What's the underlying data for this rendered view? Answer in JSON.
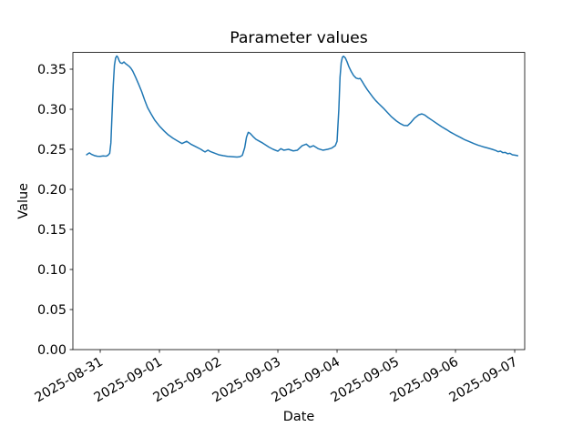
{
  "figure": {
    "title": "Parameter values",
    "xlabel": "Date",
    "ylabel": "Value"
  },
  "chart_data": {
    "type": "line",
    "title": "Parameter values",
    "xlabel": "Date",
    "ylabel": "Value",
    "legend": null,
    "grid": false,
    "line_color": "#1f77b4",
    "line_width": 1.5,
    "x_unit": "days since 2025-08-31 00:00",
    "xlim_days": [
      -0.462,
      7.169
    ],
    "ylim": [
      0.0,
      0.3709
    ],
    "x_ticks": [
      {
        "day": 0,
        "label": "2025-08-31"
      },
      {
        "day": 1,
        "label": "2025-09-01"
      },
      {
        "day": 2,
        "label": "2025-09-02"
      },
      {
        "day": 3,
        "label": "2025-09-03"
      },
      {
        "day": 4,
        "label": "2025-09-04"
      },
      {
        "day": 5,
        "label": "2025-09-05"
      },
      {
        "day": 6,
        "label": "2025-09-06"
      },
      {
        "day": 7,
        "label": "2025-09-07"
      }
    ],
    "y_ticks": [
      0.0,
      0.05,
      0.1,
      0.15,
      0.2,
      0.25,
      0.3,
      0.35
    ],
    "y_tick_decimals": 2,
    "series": [
      {
        "name": "parameter",
        "color": "#1f77b4",
        "points": [
          [
            -0.23,
            0.2432
          ],
          [
            -0.2,
            0.2448
          ],
          [
            -0.18,
            0.2455
          ],
          [
            -0.15,
            0.2438
          ],
          [
            -0.1,
            0.2422
          ],
          [
            -0.05,
            0.2413
          ],
          [
            0.0,
            0.2412
          ],
          [
            0.05,
            0.2418
          ],
          [
            0.1,
            0.2414
          ],
          [
            0.13,
            0.2425
          ],
          [
            0.16,
            0.245
          ],
          [
            0.18,
            0.258
          ],
          [
            0.2,
            0.295
          ],
          [
            0.22,
            0.33
          ],
          [
            0.24,
            0.355
          ],
          [
            0.26,
            0.364
          ],
          [
            0.28,
            0.3665
          ],
          [
            0.3,
            0.3645
          ],
          [
            0.32,
            0.3605
          ],
          [
            0.34,
            0.358
          ],
          [
            0.37,
            0.3572
          ],
          [
            0.4,
            0.359
          ],
          [
            0.43,
            0.3568
          ],
          [
            0.46,
            0.3552
          ],
          [
            0.49,
            0.3535
          ],
          [
            0.52,
            0.351
          ],
          [
            0.55,
            0.3475
          ],
          [
            0.6,
            0.3395
          ],
          [
            0.65,
            0.331
          ],
          [
            0.7,
            0.322
          ],
          [
            0.75,
            0.3115
          ],
          [
            0.8,
            0.302
          ],
          [
            0.86,
            0.294
          ],
          [
            0.92,
            0.2865
          ],
          [
            1.0,
            0.279
          ],
          [
            1.08,
            0.2728
          ],
          [
            1.15,
            0.268
          ],
          [
            1.23,
            0.2638
          ],
          [
            1.31,
            0.2602
          ],
          [
            1.38,
            0.2572
          ],
          [
            1.46,
            0.26
          ],
          [
            1.54,
            0.256
          ],
          [
            1.62,
            0.253
          ],
          [
            1.7,
            0.25
          ],
          [
            1.74,
            0.248
          ],
          [
            1.77,
            0.2467
          ],
          [
            1.82,
            0.249
          ],
          [
            1.86,
            0.2472
          ],
          [
            1.92,
            0.2455
          ],
          [
            2.0,
            0.2432
          ],
          [
            2.08,
            0.242
          ],
          [
            2.15,
            0.2412
          ],
          [
            2.23,
            0.2408
          ],
          [
            2.31,
            0.2403
          ],
          [
            2.36,
            0.2408
          ],
          [
            2.4,
            0.2425
          ],
          [
            2.44,
            0.252
          ],
          [
            2.47,
            0.265
          ],
          [
            2.5,
            0.2712
          ],
          [
            2.53,
            0.27
          ],
          [
            2.58,
            0.266
          ],
          [
            2.63,
            0.2625
          ],
          [
            2.69,
            0.26
          ],
          [
            2.74,
            0.258
          ],
          [
            2.77,
            0.2565
          ],
          [
            2.85,
            0.2527
          ],
          [
            2.92,
            0.25
          ],
          [
            3.0,
            0.2477
          ],
          [
            3.05,
            0.2508
          ],
          [
            3.1,
            0.2489
          ],
          [
            3.18,
            0.25
          ],
          [
            3.26,
            0.248
          ],
          [
            3.33,
            0.2489
          ],
          [
            3.41,
            0.2545
          ],
          [
            3.48,
            0.2565
          ],
          [
            3.54,
            0.2527
          ],
          [
            3.6,
            0.2545
          ],
          [
            3.68,
            0.2508
          ],
          [
            3.76,
            0.2489
          ],
          [
            3.84,
            0.25
          ],
          [
            3.91,
            0.2515
          ],
          [
            3.97,
            0.2545
          ],
          [
            4.0,
            0.26
          ],
          [
            4.03,
            0.3
          ],
          [
            4.05,
            0.34
          ],
          [
            4.07,
            0.358
          ],
          [
            4.09,
            0.365
          ],
          [
            4.11,
            0.3662
          ],
          [
            4.14,
            0.364
          ],
          [
            4.17,
            0.359
          ],
          [
            4.2,
            0.353
          ],
          [
            4.24,
            0.347
          ],
          [
            4.28,
            0.342
          ],
          [
            4.32,
            0.339
          ],
          [
            4.36,
            0.338
          ],
          [
            4.39,
            0.3385
          ],
          [
            4.43,
            0.334
          ],
          [
            4.47,
            0.329
          ],
          [
            4.51,
            0.3245
          ],
          [
            4.55,
            0.3205
          ],
          [
            4.6,
            0.3155
          ],
          [
            4.65,
            0.311
          ],
          [
            4.71,
            0.3065
          ],
          [
            4.78,
            0.3015
          ],
          [
            4.85,
            0.296
          ],
          [
            4.92,
            0.2905
          ],
          [
            5.0,
            0.2855
          ],
          [
            5.07,
            0.282
          ],
          [
            5.13,
            0.2798
          ],
          [
            5.19,
            0.2795
          ],
          [
            5.24,
            0.283
          ],
          [
            5.31,
            0.289
          ],
          [
            5.38,
            0.293
          ],
          [
            5.43,
            0.2942
          ],
          [
            5.48,
            0.2928
          ],
          [
            5.54,
            0.2895
          ],
          [
            5.61,
            0.286
          ],
          [
            5.69,
            0.282
          ],
          [
            5.77,
            0.278
          ],
          [
            5.85,
            0.2745
          ],
          [
            5.92,
            0.2712
          ],
          [
            6.0,
            0.268
          ],
          [
            6.08,
            0.265
          ],
          [
            6.15,
            0.2622
          ],
          [
            6.23,
            0.2597
          ],
          [
            6.31,
            0.2572
          ],
          [
            6.38,
            0.2552
          ],
          [
            6.46,
            0.2533
          ],
          [
            6.54,
            0.2517
          ],
          [
            6.62,
            0.25
          ],
          [
            6.68,
            0.2485
          ],
          [
            6.72,
            0.247
          ],
          [
            6.76,
            0.2477
          ],
          [
            6.8,
            0.2458
          ],
          [
            6.84,
            0.2462
          ],
          [
            6.88,
            0.2445
          ],
          [
            6.92,
            0.245
          ],
          [
            6.96,
            0.2432
          ],
          [
            7.0,
            0.2428
          ],
          [
            7.05,
            0.242
          ]
        ]
      }
    ]
  }
}
